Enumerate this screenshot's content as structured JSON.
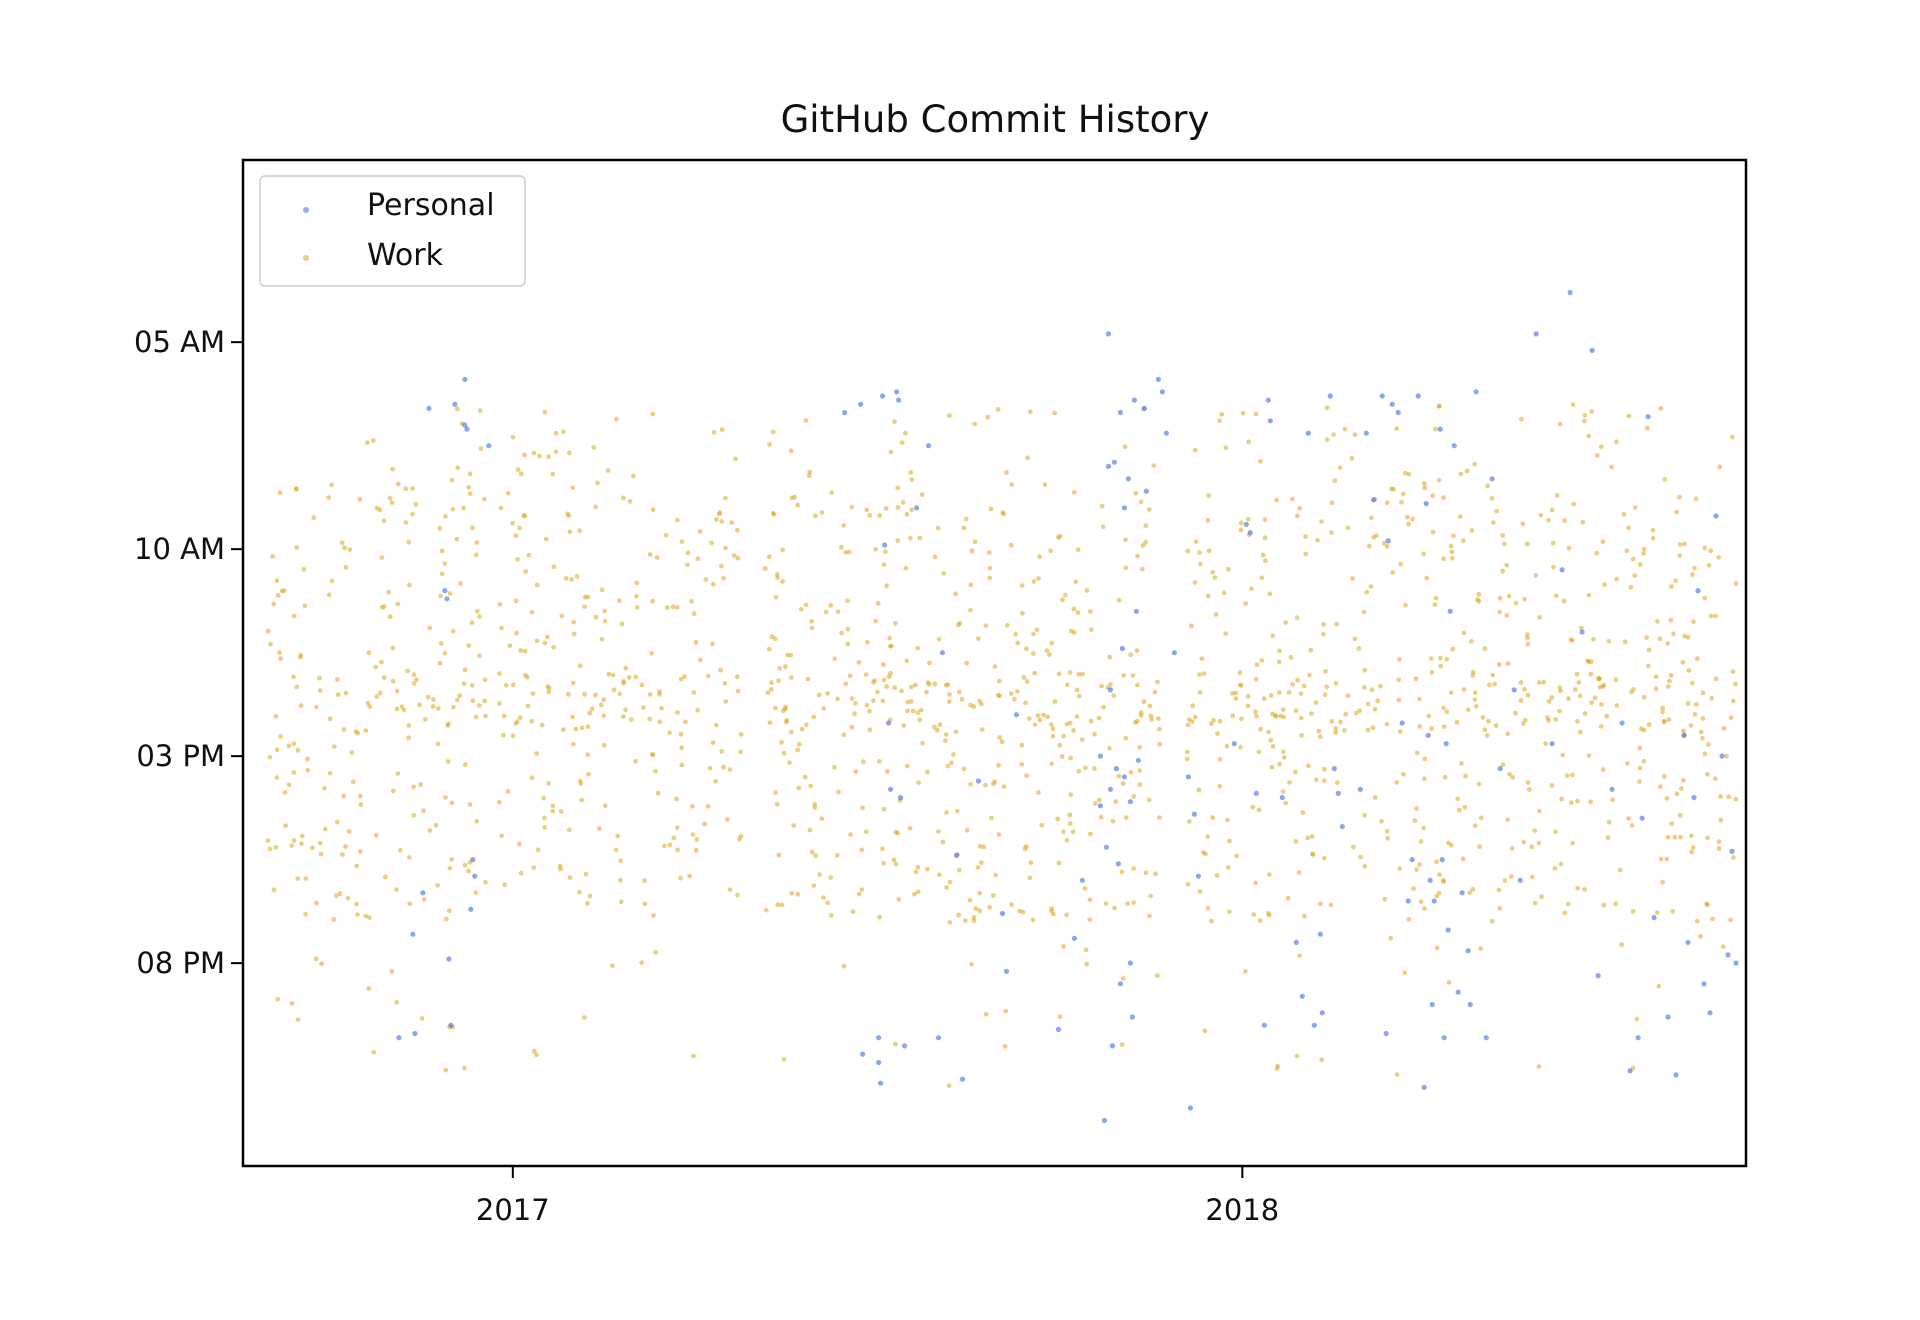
{
  "chart_data": {
    "type": "scatter",
    "title": "GitHub Commit History",
    "xlabel": "",
    "ylabel": "",
    "x_axis": {
      "kind": "date",
      "range": [
        "2016-08-19",
        "2018-09-10"
      ],
      "ticks": [
        {
          "date": "2017-01-01",
          "label": "2017"
        },
        {
          "date": "2018-01-01",
          "label": "2018"
        }
      ]
    },
    "y_axis": {
      "kind": "time_of_day",
      "inverted": true,
      "range_hours": [
        0.6,
        24.9
      ],
      "ticks": [
        {
          "hour": 5,
          "label": "05 AM"
        },
        {
          "hour": 10,
          "label": "10 AM"
        },
        {
          "hour": 15,
          "label": "03 PM"
        },
        {
          "hour": 20,
          "label": "08 PM"
        }
      ]
    },
    "grid": false,
    "legend": {
      "position": "top-left"
    },
    "series": [
      {
        "name": "Personal",
        "color": "#4169e1",
        "points": [
          [
            "2016-11-05",
            21.8
          ],
          [
            "2016-11-12",
            19.3
          ],
          [
            "2016-11-13",
            21.7
          ],
          [
            "2016-11-17",
            18.3
          ],
          [
            "2016-11-20",
            6.6
          ],
          [
            "2016-11-28",
            11.0
          ],
          [
            "2016-11-29",
            11.2
          ],
          [
            "2016-11-30",
            19.9
          ],
          [
            "2016-12-01",
            21.5
          ],
          [
            "2016-12-03",
            6.5
          ],
          [
            "2016-12-08",
            5.9
          ],
          [
            "2016-12-08",
            7.0
          ],
          [
            "2016-12-09",
            7.1
          ],
          [
            "2016-12-11",
            18.7
          ],
          [
            "2016-12-12",
            17.5
          ],
          [
            "2016-12-13",
            17.9
          ],
          [
            "2016-12-20",
            7.5
          ],
          [
            "2017-06-16",
            6.7
          ],
          [
            "2017-06-24",
            6.5
          ],
          [
            "2017-06-25",
            22.2
          ],
          [
            "2017-07-03",
            22.4
          ],
          [
            "2017-07-03",
            21.8
          ],
          [
            "2017-07-04",
            22.9
          ],
          [
            "2017-07-05",
            6.3
          ],
          [
            "2017-07-06",
            9.9
          ],
          [
            "2017-07-08",
            14.2
          ],
          [
            "2017-07-09",
            15.8
          ],
          [
            "2017-07-12",
            6.2
          ],
          [
            "2017-07-13",
            6.4
          ],
          [
            "2017-07-14",
            16.0
          ],
          [
            "2017-07-16",
            22.0
          ],
          [
            "2017-07-22",
            9.0
          ],
          [
            "2017-07-28",
            7.5
          ],
          [
            "2017-08-02",
            21.8
          ],
          [
            "2017-08-04",
            12.5
          ],
          [
            "2017-08-11",
            17.4
          ],
          [
            "2017-08-14",
            22.8
          ],
          [
            "2017-08-22",
            15.6
          ],
          [
            "2017-09-03",
            18.8
          ],
          [
            "2017-09-05",
            20.2
          ],
          [
            "2017-09-10",
            14.0
          ],
          [
            "2017-10-01",
            21.6
          ],
          [
            "2017-10-09",
            19.4
          ],
          [
            "2017-10-13",
            18.0
          ],
          [
            "2017-10-22",
            15.0
          ],
          [
            "2017-10-22",
            16.2
          ],
          [
            "2017-10-24",
            23.8
          ],
          [
            "2017-10-25",
            17.2
          ],
          [
            "2017-10-26",
            8.0
          ],
          [
            "2017-10-26",
            4.8
          ],
          [
            "2017-10-27",
            13.4
          ],
          [
            "2017-10-27",
            15.8
          ],
          [
            "2017-10-28",
            22.0
          ],
          [
            "2017-10-29",
            7.9
          ],
          [
            "2017-10-30",
            15.3
          ],
          [
            "2017-10-31",
            17.6
          ],
          [
            "2017-11-01",
            20.5
          ],
          [
            "2017-11-01",
            6.7
          ],
          [
            "2017-11-02",
            12.4
          ],
          [
            "2017-11-03",
            15.5
          ],
          [
            "2017-11-03",
            9.0
          ],
          [
            "2017-11-05",
            8.3
          ],
          [
            "2017-11-06",
            20.0
          ],
          [
            "2017-11-06",
            16.1
          ],
          [
            "2017-11-07",
            21.3
          ],
          [
            "2017-11-08",
            6.4
          ],
          [
            "2017-11-09",
            11.5
          ],
          [
            "2017-11-10",
            15.1
          ],
          [
            "2017-11-13",
            6.6
          ],
          [
            "2017-11-14",
            8.6
          ],
          [
            "2017-11-20",
            5.9
          ],
          [
            "2017-11-22",
            6.2
          ],
          [
            "2017-11-24",
            7.2
          ],
          [
            "2017-11-28",
            12.5
          ],
          [
            "2017-12-05",
            15.5
          ],
          [
            "2017-12-06",
            23.5
          ],
          [
            "2017-12-08",
            16.4
          ],
          [
            "2017-12-10",
            17.9
          ],
          [
            "2017-12-28",
            14.7
          ],
          [
            "2018-01-03",
            9.4
          ],
          [
            "2018-01-05",
            9.6
          ],
          [
            "2018-01-08",
            15.9
          ],
          [
            "2018-01-12",
            21.5
          ],
          [
            "2018-01-14",
            6.4
          ],
          [
            "2018-01-15",
            6.9
          ],
          [
            "2018-01-21",
            16.0
          ],
          [
            "2018-01-28",
            19.5
          ],
          [
            "2018-01-31",
            20.8
          ],
          [
            "2018-02-03",
            7.2
          ],
          [
            "2018-02-06",
            21.5
          ],
          [
            "2018-02-09",
            19.3
          ],
          [
            "2018-02-10",
            21.2
          ],
          [
            "2018-02-14",
            6.3
          ],
          [
            "2018-02-16",
            15.3
          ],
          [
            "2018-02-18",
            15.9
          ],
          [
            "2018-02-20",
            16.7
          ],
          [
            "2018-03-01",
            15.8
          ],
          [
            "2018-03-04",
            7.2
          ],
          [
            "2018-03-08",
            8.8
          ],
          [
            "2018-03-12",
            6.3
          ],
          [
            "2018-03-14",
            21.7
          ],
          [
            "2018-03-15",
            9.8
          ],
          [
            "2018-03-17",
            6.5
          ],
          [
            "2018-03-20",
            6.7
          ],
          [
            "2018-03-22",
            14.2
          ],
          [
            "2018-03-25",
            18.5
          ],
          [
            "2018-03-27",
            17.5
          ],
          [
            "2018-03-30",
            6.3
          ],
          [
            "2018-04-02",
            23.0
          ],
          [
            "2018-04-03",
            8.9
          ],
          [
            "2018-04-04",
            14.5
          ],
          [
            "2018-04-05",
            18.0
          ],
          [
            "2018-04-06",
            21.0
          ],
          [
            "2018-04-07",
            18.5
          ],
          [
            "2018-04-10",
            7.1
          ],
          [
            "2018-04-11",
            17.5
          ],
          [
            "2018-04-12",
            21.8
          ],
          [
            "2018-04-13",
            14.7
          ],
          [
            "2018-04-14",
            19.2
          ],
          [
            "2018-04-15",
            11.5
          ],
          [
            "2018-04-17",
            7.5
          ],
          [
            "2018-04-19",
            20.7
          ],
          [
            "2018-04-21",
            18.3
          ],
          [
            "2018-04-24",
            19.7
          ],
          [
            "2018-04-25",
            21.0
          ],
          [
            "2018-04-28",
            6.2
          ],
          [
            "2018-05-03",
            21.8
          ],
          [
            "2018-05-06",
            8.3
          ],
          [
            "2018-05-10",
            15.3
          ],
          [
            "2018-05-17",
            13.4
          ],
          [
            "2018-05-20",
            18.0
          ],
          [
            "2018-05-28",
            4.8
          ],
          [
            "2018-06-05",
            14.7
          ],
          [
            "2018-06-10",
            10.5
          ],
          [
            "2018-06-14",
            3.8
          ],
          [
            "2018-06-20",
            12.0
          ],
          [
            "2018-06-25",
            5.2
          ],
          [
            "2018-06-28",
            20.3
          ],
          [
            "2018-07-05",
            15.8
          ],
          [
            "2018-07-10",
            14.2
          ],
          [
            "2018-07-14",
            22.6
          ],
          [
            "2018-07-18",
            21.8
          ],
          [
            "2018-07-20",
            16.5
          ],
          [
            "2018-07-23",
            6.8
          ],
          [
            "2018-07-26",
            18.9
          ],
          [
            "2018-08-02",
            21.3
          ],
          [
            "2018-08-06",
            22.7
          ],
          [
            "2018-08-10",
            14.5
          ],
          [
            "2018-08-12",
            19.5
          ],
          [
            "2018-08-15",
            16.0
          ],
          [
            "2018-08-17",
            11.0
          ],
          [
            "2018-08-20",
            20.5
          ],
          [
            "2018-08-23",
            21.2
          ],
          [
            "2018-08-26",
            9.2
          ],
          [
            "2018-08-29",
            15.0
          ],
          [
            "2018-09-01",
            19.8
          ],
          [
            "2018-09-03",
            17.3
          ],
          [
            "2018-09-05",
            20.0
          ]
        ]
      },
      {
        "name": "Work",
        "color": "#daa520",
        "description_free": true,
        "points": []
      }
    ]
  },
  "legend_items": [
    {
      "label": "Personal",
      "color": "#4169e1"
    },
    {
      "label": "Work",
      "color": "#daa520"
    }
  ]
}
